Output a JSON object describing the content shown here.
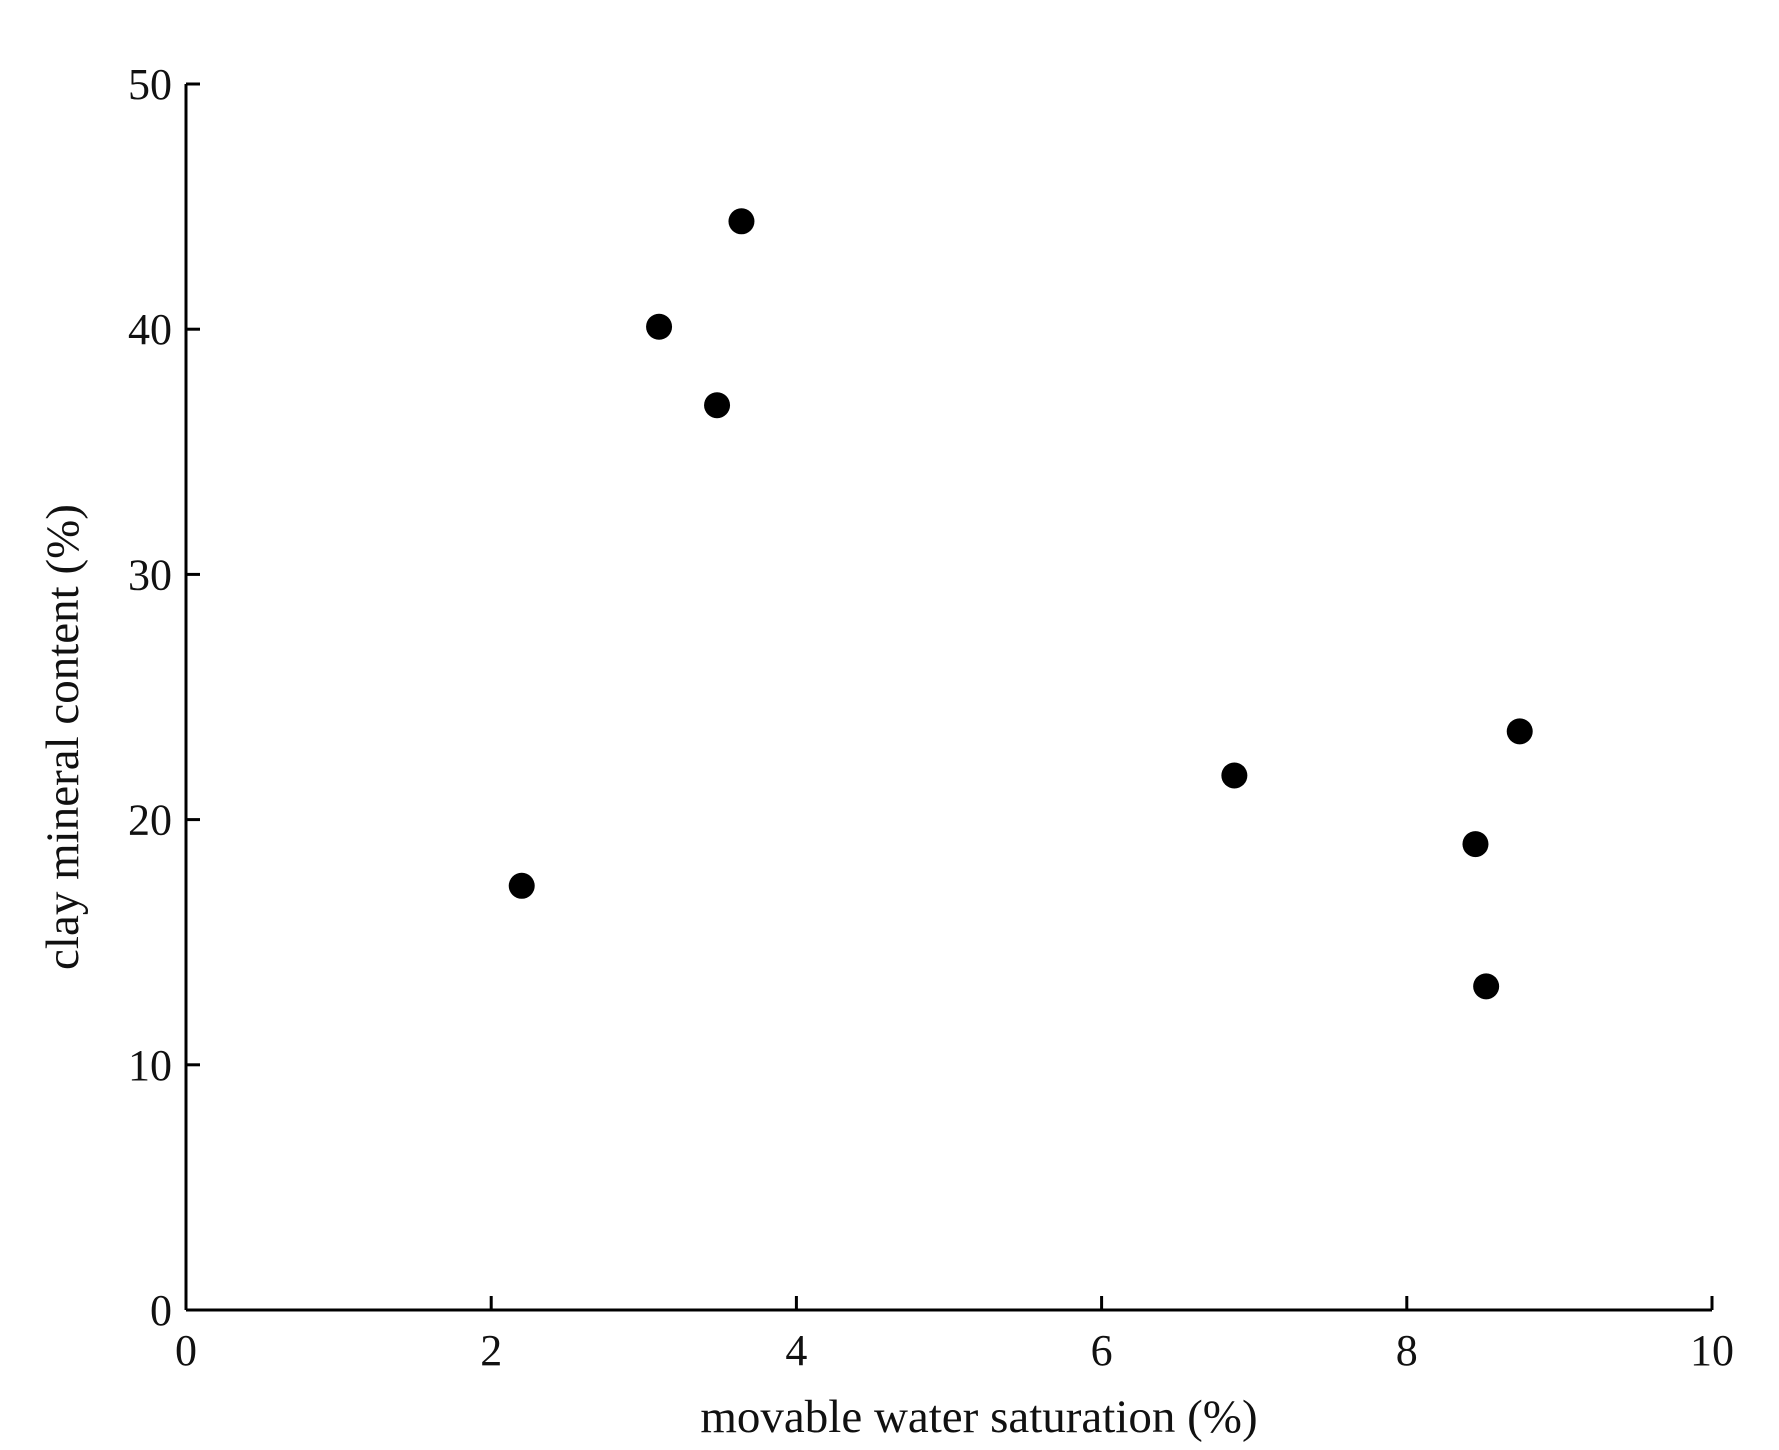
{
  "chart_data": {
    "type": "scatter",
    "xlabel": "movable water saturation (%)",
    "ylabel": "clay mineral content  (%)",
    "xlim": [
      0,
      10
    ],
    "ylim": [
      0,
      50
    ],
    "xticks": [
      0,
      2,
      4,
      6,
      8,
      10
    ],
    "yticks": [
      0,
      10,
      20,
      30,
      40,
      50
    ],
    "grid": false,
    "marker": "filled-circle",
    "marker_color": "#000000",
    "points": [
      {
        "x": 2.2,
        "y": 17.3
      },
      {
        "x": 3.1,
        "y": 40.1
      },
      {
        "x": 3.48,
        "y": 36.9
      },
      {
        "x": 3.64,
        "y": 44.4
      },
      {
        "x": 6.87,
        "y": 21.8
      },
      {
        "x": 8.45,
        "y": 19.0
      },
      {
        "x": 8.52,
        "y": 13.2
      },
      {
        "x": 8.74,
        "y": 23.6
      }
    ]
  }
}
